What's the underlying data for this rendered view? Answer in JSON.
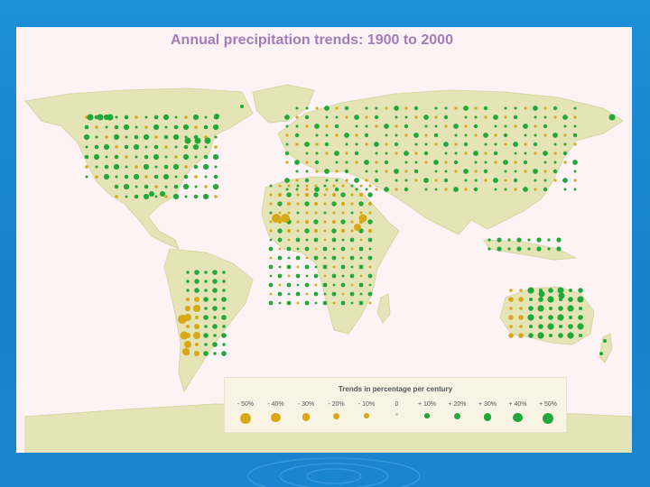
{
  "slide": {
    "title": "Annual precipitation trends: 1900 to 2000"
  },
  "legend": {
    "title": "Trends in percentage per century",
    "items": [
      {
        "label": "- 50%",
        "trend": -50,
        "color": "#d8a818"
      },
      {
        "label": "- 40%",
        "trend": -40,
        "color": "#d8a818"
      },
      {
        "label": "- 30%",
        "trend": -30,
        "color": "#d8a818"
      },
      {
        "label": "- 20%",
        "trend": -20,
        "color": "#d8a818"
      },
      {
        "label": "- 10%",
        "trend": -10,
        "color": "#d8a818"
      },
      {
        "label": "0",
        "trend": 0,
        "color": "#bfc8a0"
      },
      {
        "label": "+ 10%",
        "trend": 10,
        "color": "#22a83a"
      },
      {
        "label": "+ 20%",
        "trend": 20,
        "color": "#22a83a"
      },
      {
        "label": "+ 30%",
        "trend": 30,
        "color": "#22a83a"
      },
      {
        "label": "+ 40%",
        "trend": 40,
        "color": "#22a83a"
      },
      {
        "label": "+ 50%",
        "trend": 50,
        "color": "#22a83a"
      }
    ]
  },
  "colors": {
    "land": "#e4e4b6",
    "land_stroke": "#d6d6a6",
    "ocean": "#fdf3f5",
    "increase": "#22a83a",
    "decrease": "#d8a818"
  }
}
